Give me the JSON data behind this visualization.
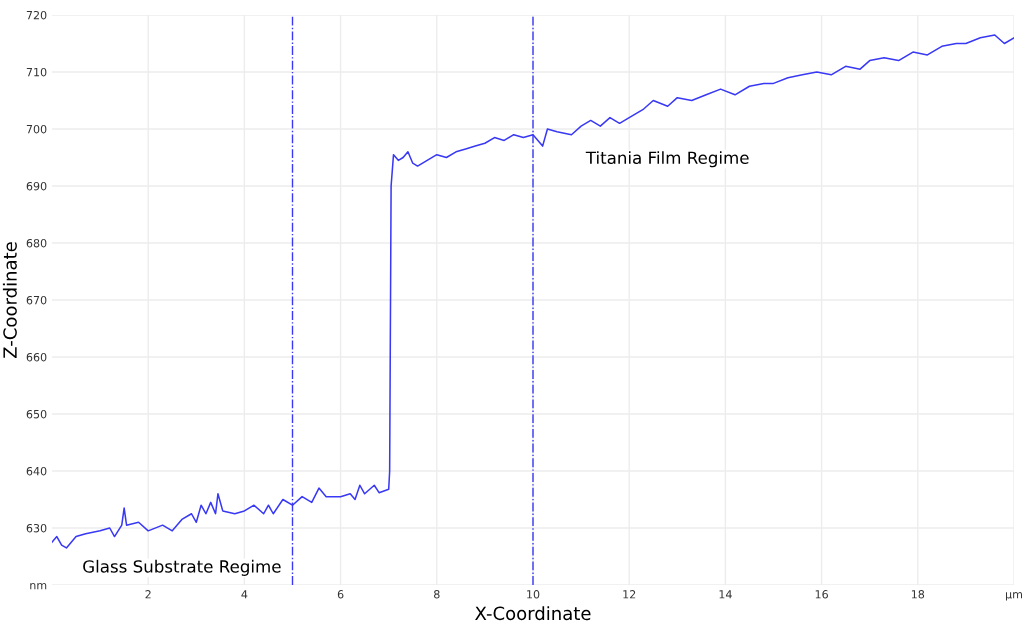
{
  "chart_data": {
    "type": "line",
    "xlabel": "X-Coordinate",
    "ylabel": "Z-Coordinate",
    "xlim": [
      0,
      20
    ],
    "ylim": [
      620,
      720
    ],
    "xticks": [
      2,
      4,
      6,
      8,
      10,
      12,
      14,
      16,
      18,
      {
        "value": 20,
        "label": "µm"
      }
    ],
    "yticks": [
      {
        "value": 620,
        "label": "nm"
      },
      630,
      640,
      650,
      660,
      670,
      680,
      690,
      700,
      710,
      720
    ],
    "grid": true,
    "legend": false,
    "series": [
      {
        "color": "#3838f5",
        "x": [
          0,
          0.1,
          0.2,
          0.3,
          0.5,
          0.7,
          1.0,
          1.2,
          1.3,
          1.45,
          1.5,
          1.55,
          1.8,
          2.0,
          2.3,
          2.5,
          2.7,
          2.9,
          3.0,
          3.1,
          3.2,
          3.3,
          3.4,
          3.45,
          3.55,
          3.8,
          4.0,
          4.2,
          4.4,
          4.5,
          4.6,
          4.8,
          5.0,
          5.2,
          5.4,
          5.55,
          5.7,
          6.0,
          6.2,
          6.3,
          6.4,
          6.5,
          6.7,
          6.8,
          7.0,
          7.02,
          7.05,
          7.1,
          7.2,
          7.3,
          7.4,
          7.5,
          7.6,
          7.8,
          8.0,
          8.2,
          8.4,
          8.6,
          8.8,
          9.0,
          9.2,
          9.4,
          9.6,
          9.8,
          10.0,
          10.2,
          10.3,
          10.5,
          10.8,
          11.0,
          11.2,
          11.4,
          11.6,
          11.8,
          12.0,
          12.3,
          12.5,
          12.8,
          13.0,
          13.3,
          13.6,
          13.9,
          14.2,
          14.5,
          14.8,
          15.0,
          15.3,
          15.6,
          15.9,
          16.2,
          16.5,
          16.8,
          17.0,
          17.3,
          17.6,
          17.9,
          18.2,
          18.5,
          18.8,
          19.0,
          19.3,
          19.6,
          19.8,
          20.0
        ],
        "values": [
          627.5,
          628.5,
          627,
          626.5,
          628.5,
          629,
          629.5,
          630,
          628.5,
          630.5,
          633.5,
          630.5,
          631,
          629.5,
          630.5,
          629.5,
          631.5,
          632.5,
          631,
          634,
          632.5,
          634.5,
          632.5,
          636,
          633,
          632.5,
          633,
          634,
          632.5,
          634,
          632.5,
          635,
          634,
          635.5,
          634.5,
          637,
          635.5,
          635.5,
          636,
          635,
          637.5,
          636,
          637.5,
          636.2,
          636.8,
          640,
          690,
          695.5,
          694.5,
          695,
          696,
          694,
          693.5,
          694.5,
          695.5,
          695,
          696,
          696.5,
          697,
          697.5,
          698.5,
          698,
          699,
          698.5,
          699,
          697,
          700,
          699.5,
          699,
          700.5,
          701.5,
          700.5,
          702,
          701,
          702,
          703.5,
          705,
          704,
          705.5,
          705,
          706,
          707,
          706,
          707.5,
          708,
          708,
          709,
          709.5,
          710,
          709.5,
          711,
          710.5,
          712,
          712.5,
          712,
          713.5,
          713,
          714.5,
          715,
          715,
          716,
          716.5,
          715,
          716
        ]
      }
    ],
    "ref_lines": [
      {
        "axis": "x",
        "value": 5,
        "color": "#3838f5",
        "line_style": "dashdot"
      },
      {
        "axis": "x",
        "value": 10,
        "color": "#3838f5",
        "line_style": "dashdot"
      }
    ],
    "annotations": [
      "Glass Substrate Regime",
      "Titania Film Regime"
    ]
  }
}
